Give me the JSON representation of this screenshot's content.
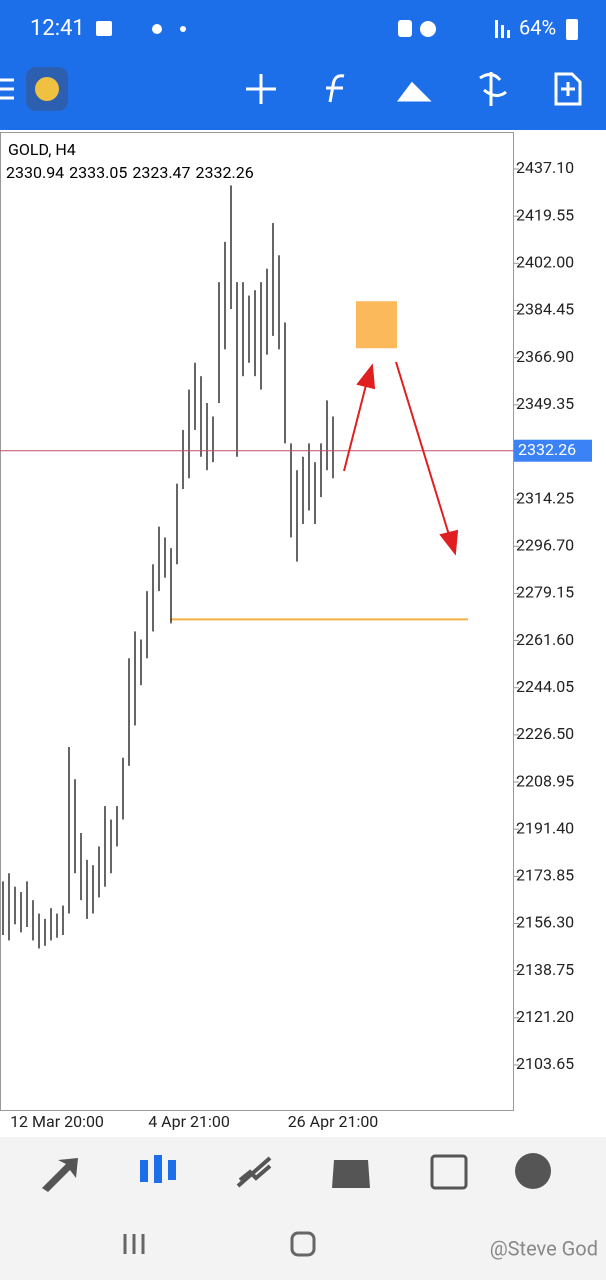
{
  "status_bar": {
    "time": "12:41",
    "battery": "64%"
  },
  "chart_data": {
    "type": "range-bar",
    "symbol": "GOLD, H4",
    "last_ohlc": [
      2330.94,
      2333.05,
      2323.47,
      2332.26
    ],
    "categories": [
      null,
      null,
      null,
      null,
      null,
      null,
      null,
      null,
      null,
      "12 Mar 20:00",
      null,
      null,
      null,
      null,
      null,
      null,
      null,
      null,
      null,
      null,
      null,
      null,
      null,
      null,
      null,
      null,
      null,
      null,
      null,
      null,
      null,
      "4 Apr 21:00",
      null,
      null,
      null,
      null,
      null,
      null,
      null,
      null,
      null,
      null,
      null,
      null,
      null,
      null,
      null,
      null,
      null,
      null,
      null,
      null,
      null,
      null,
      null,
      "26 Apr 21:00"
    ],
    "series": [
      {
        "name": "low",
        "color": "#333333",
        "values": [
          2152,
          2150,
          2156,
          2153,
          2155,
          2150,
          2147,
          2148,
          2150,
          2151,
          2152,
          2160,
          2175,
          2165,
          2158,
          2160,
          2166,
          2170,
          2175,
          2185,
          2195,
          2215,
          2230,
          2245,
          2255,
          2265,
          2280,
          2285,
          2268,
          2290,
          2318,
          2322,
          2340,
          2330,
          2325,
          2328,
          2350,
          2370,
          2385,
          2330,
          2360,
          2365,
          2360,
          2355,
          2368,
          2375,
          2370,
          2335,
          2300,
          2291,
          2305,
          2310,
          2305,
          2315,
          2325,
          2322
        ]
      },
      {
        "name": "high",
        "color": "#333333",
        "values": [
          2172,
          2175,
          2170,
          2168,
          2172,
          2165,
          2160,
          2158,
          2162,
          2160,
          2163,
          2222,
          2210,
          2190,
          2180,
          2178,
          2185,
          2200,
          2195,
          2200,
          2218,
          2255,
          2265,
          2262,
          2280,
          2290,
          2304,
          2300,
          2296,
          2320,
          2340,
          2355,
          2365,
          2360,
          2350,
          2345,
          2395,
          2410,
          2431,
          2395,
          2395,
          2390,
          2392,
          2395,
          2400,
          2417,
          2405,
          2380,
          2335,
          2325,
          2330,
          2335,
          2328,
          2335,
          2351,
          2345
        ]
      }
    ],
    "ylim": [
      2086.89,
      2450.88
    ],
    "yticks": [
      {
        "value": 2437.1,
        "label": "2437.10"
      },
      {
        "value": 2419.55,
        "label": "2419.55"
      },
      {
        "value": 2402,
        "label": "2402.00"
      },
      {
        "value": 2384.45,
        "label": "2384.45"
      },
      {
        "value": 2366.9,
        "label": "2366.90"
      },
      {
        "value": 2349.35,
        "label": "2349.35"
      },
      {
        "value": 2314.25,
        "label": "2314.25"
      },
      {
        "value": 2296.7,
        "label": "2296.70"
      },
      {
        "value": 2279.15,
        "label": "2279.15"
      },
      {
        "value": 2261.6,
        "label": "2261.60"
      },
      {
        "value": 2244.05,
        "label": "2244.05"
      },
      {
        "value": 2226.5,
        "label": "2226.50"
      },
      {
        "value": 2208.95,
        "label": "2208.95"
      },
      {
        "value": 2191.4,
        "label": "2191.40"
      },
      {
        "value": 2173.85,
        "label": "2173.85"
      },
      {
        "value": 2156.3,
        "label": "2156.30"
      },
      {
        "value": 2138.75,
        "label": "2138.75"
      },
      {
        "value": 2121.2,
        "label": "2121.20"
      },
      {
        "value": 2103.65,
        "label": "2103.65"
      }
    ],
    "current_price": 2332.26,
    "horizontal_line": {
      "value": 2269.5,
      "color": "#f5b041"
    },
    "rectangle": {
      "high": 2387.9,
      "low": 2370.4,
      "color": "#fbb95c"
    }
  },
  "watermark": "@Steve God"
}
